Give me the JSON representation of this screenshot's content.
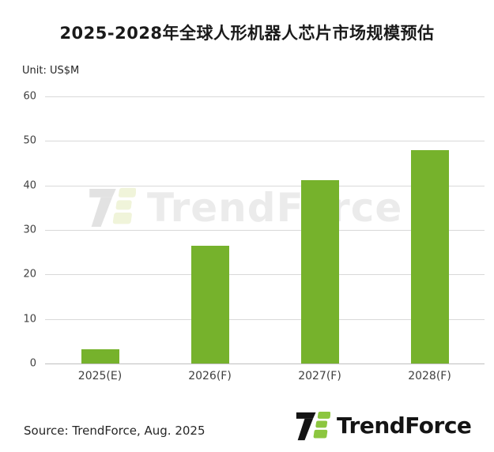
{
  "title": "2025-2028年全球人形机器人芯片市场规模预估",
  "unit_label": "Unit: US$M",
  "source": "Source: TrendForce, Aug. 2025",
  "watermark_text": "TrendForce",
  "logo_text": "TrendForce",
  "colors": {
    "bar_green": "#76B22C",
    "logo_green": "#8CC63F",
    "gridline": "#D9D9D9",
    "axis_baseline": "#BFBFBF",
    "title_text": "#1A1A1A",
    "watermark_gray": "#EBEBEB"
  },
  "chart_data": {
    "type": "bar",
    "title": "2025-2028年全球人形机器人芯片市场规模预估",
    "categories": [
      "2025(E)",
      "2026(F)",
      "2027(F)",
      "2028(F)"
    ],
    "values": [
      3.2,
      26.5,
      41.1,
      48.0
    ],
    "xlabel": "",
    "ylabel": "Unit: US$M",
    "ylim": [
      0,
      60
    ],
    "yticks": [
      0,
      10,
      20,
      30,
      40,
      50,
      60
    ],
    "grid": true,
    "legend": "none",
    "bar_color": "#76B22C",
    "source": "Source: TrendForce, Aug. 2025"
  }
}
